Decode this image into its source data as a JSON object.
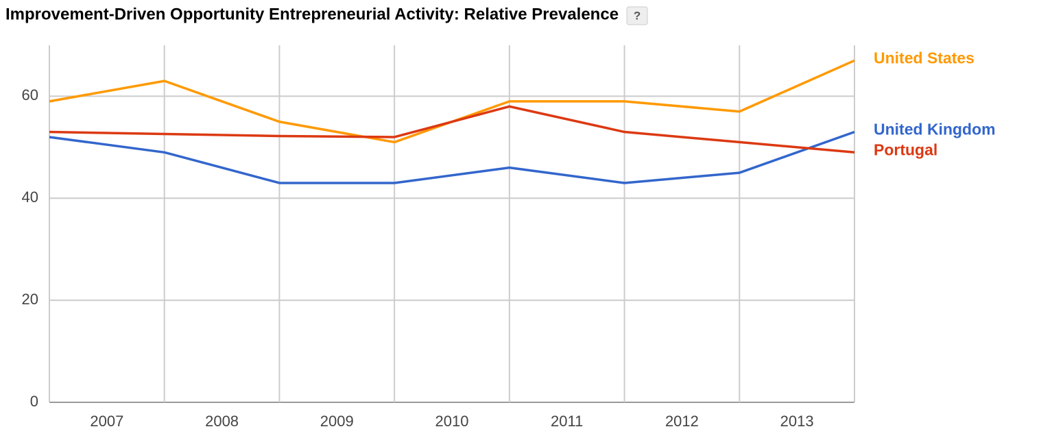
{
  "chart_data": {
    "type": "line",
    "title": "Improvement-Driven Opportunity Entrepreneurial Activity: Relative Prevalence",
    "help_label": "?",
    "x": [
      2006.5,
      2007.5,
      2008.5,
      2009.5,
      2010.5,
      2011.5,
      2012.5,
      2013.5
    ],
    "xlim": [
      2006.5,
      2013.5
    ],
    "xticks": [
      2007,
      2008,
      2009,
      2010,
      2011,
      2012,
      2013
    ],
    "ylim": [
      0,
      70
    ],
    "yticks": [
      0,
      20,
      40,
      60
    ],
    "grid": true,
    "legend": "right",
    "series": [
      {
        "name": "United States",
        "color": "#ff9900",
        "values": [
          59,
          63,
          55,
          51,
          59,
          59,
          57,
          67
        ]
      },
      {
        "name": "United Kingdom",
        "color": "#3366cc",
        "values": [
          52,
          49,
          43,
          43,
          46,
          43,
          45,
          53
        ]
      },
      {
        "name": "Portugal",
        "color": "#dc3912",
        "values": [
          53,
          52.6,
          52.2,
          52,
          58,
          53,
          51,
          49
        ]
      }
    ]
  }
}
